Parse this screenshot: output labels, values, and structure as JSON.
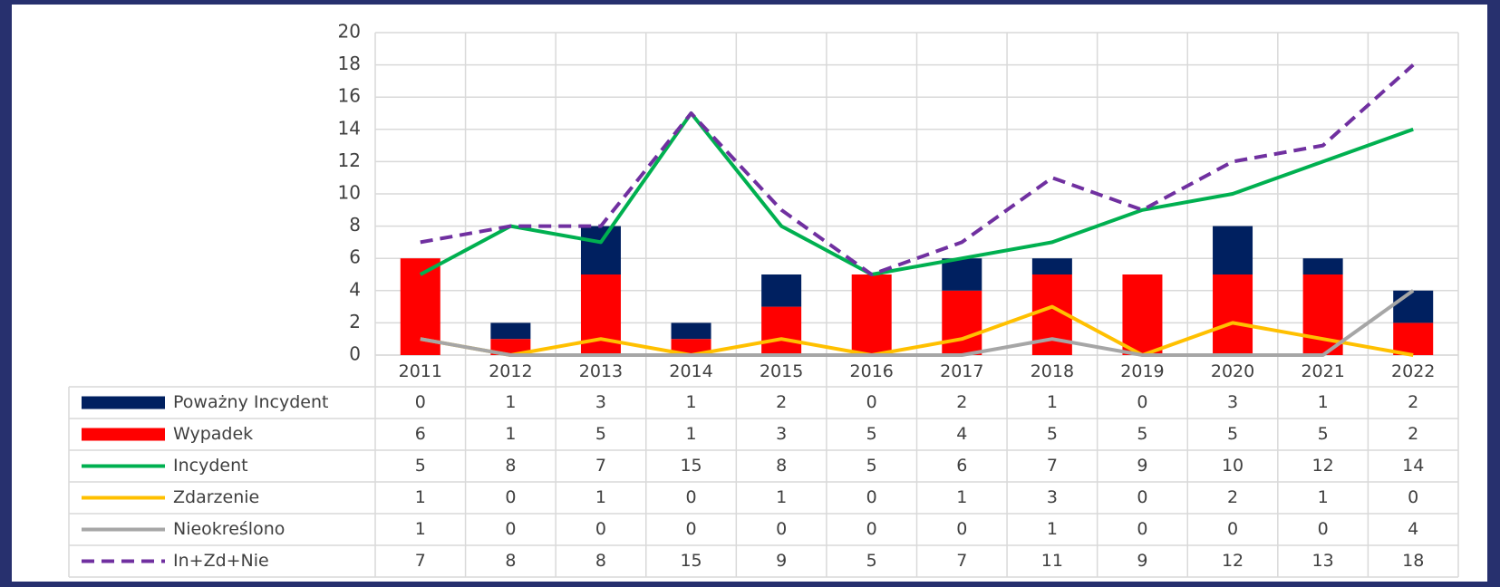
{
  "chart_data": {
    "type": "bar",
    "categories": [
      "2011",
      "2012",
      "2013",
      "2014",
      "2015",
      "2016",
      "2017",
      "2018",
      "2019",
      "2020",
      "2021",
      "2022"
    ],
    "series": [
      {
        "name": "Poważny Incydent",
        "type": "bar",
        "color": "#002060",
        "values": [
          0,
          1,
          3,
          1,
          2,
          0,
          2,
          1,
          0,
          3,
          1,
          2
        ]
      },
      {
        "name": "Wypadek",
        "type": "bar",
        "color": "#ff0000",
        "values": [
          6,
          1,
          5,
          1,
          3,
          5,
          4,
          5,
          5,
          5,
          5,
          2
        ]
      },
      {
        "name": "Incydent",
        "type": "line",
        "color": "#00b050",
        "values": [
          5,
          8,
          7,
          15,
          8,
          5,
          6,
          7,
          9,
          10,
          12,
          14
        ]
      },
      {
        "name": "Zdarzenie",
        "type": "line",
        "color": "#ffc000",
        "values": [
          1,
          0,
          1,
          0,
          1,
          0,
          1,
          3,
          0,
          2,
          1,
          0
        ]
      },
      {
        "name": "Nieokreślono",
        "type": "line",
        "color": "#a6a6a6",
        "values": [
          1,
          0,
          0,
          0,
          0,
          0,
          0,
          1,
          0,
          0,
          0,
          4
        ]
      },
      {
        "name": "In+Zd+Nie",
        "type": "line",
        "dashed": true,
        "color": "#7030a0",
        "values": [
          7,
          8,
          8,
          15,
          9,
          5,
          7,
          11,
          9,
          12,
          13,
          18
        ]
      }
    ],
    "ylim": [
      0,
      20
    ],
    "yticks": [
      0,
      2,
      4,
      6,
      8,
      10,
      12,
      14,
      16,
      18,
      20
    ],
    "grid": true
  }
}
